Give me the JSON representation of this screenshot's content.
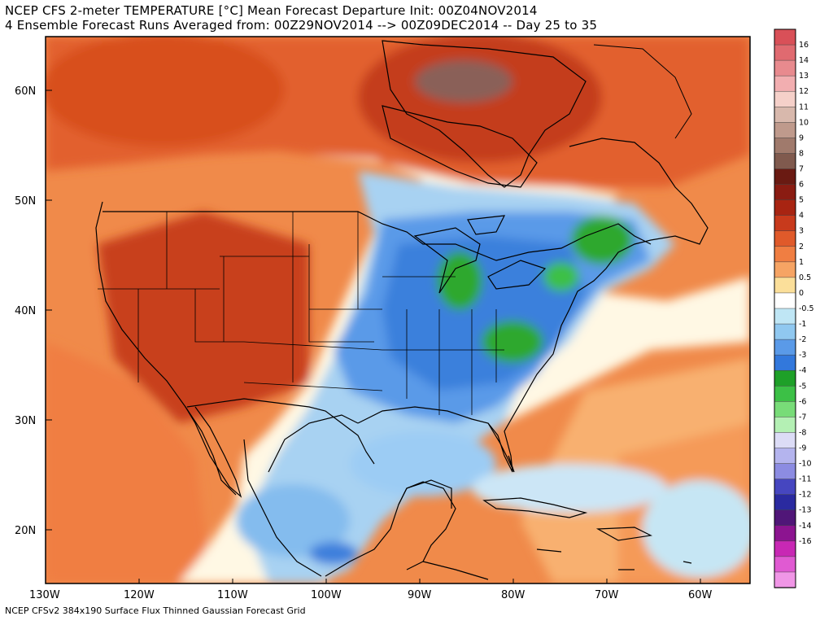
{
  "title": {
    "line1": "NCEP CFS 2-meter TEMPERATURE [°C] Mean Forecast Departure Init: 00Z04NOV2014",
    "line2": "4 Ensemble Forecast Runs Averaged from: 00Z29NOV2014 --> 00Z09DEC2014 -- Day 25 to 35"
  },
  "footer": "NCEP CFSv2 384x190 Surface Flux Thinned Gaussian Forecast Grid",
  "map": {
    "lat_ticks": [
      "60N",
      "50N",
      "40N",
      "30N",
      "20N"
    ],
    "lon_ticks": [
      "130W",
      "120W",
      "110W",
      "100W",
      "90W",
      "80W",
      "70W",
      "60W"
    ],
    "lat_range": [
      15,
      65
    ],
    "lon_range": [
      -130,
      -55
    ]
  },
  "colorbar": {
    "levels": [
      {
        "label": "16",
        "color": "#d95058"
      },
      {
        "label": "14",
        "color": "#e06a70"
      },
      {
        "label": "13",
        "color": "#e88a8e"
      },
      {
        "label": "12",
        "color": "#f2aeb0"
      },
      {
        "label": "11",
        "color": "#f5d0c9"
      },
      {
        "label": "10",
        "color": "#d8b8ac"
      },
      {
        "label": "9",
        "color": "#bf9a8c"
      },
      {
        "label": "8",
        "color": "#a07a6c"
      },
      {
        "label": "7",
        "color": "#805a4e"
      },
      {
        "label": "6",
        "color": "#6a1a12"
      },
      {
        "label": "5",
        "color": "#8a1c12"
      },
      {
        "label": "4",
        "color": "#a82412"
      },
      {
        "label": "3",
        "color": "#c83a1c"
      },
      {
        "label": "2",
        "color": "#e05a2a"
      },
      {
        "label": "1",
        "color": "#f07e42"
      },
      {
        "label": "0.5",
        "color": "#f6a464"
      },
      {
        "label": "0",
        "color": "#fbdf9a"
      },
      {
        "label": "-0.5",
        "color": "#ffffff"
      },
      {
        "label": "-1",
        "color": "#bfe6f5"
      },
      {
        "label": "-2",
        "color": "#90c8f0"
      },
      {
        "label": "-3",
        "color": "#5a9ae8"
      },
      {
        "label": "-4",
        "color": "#3278dc"
      },
      {
        "label": "-5",
        "color": "#1ea028"
      },
      {
        "label": "-6",
        "color": "#3cc046"
      },
      {
        "label": "-7",
        "color": "#78dc78"
      },
      {
        "label": "-8",
        "color": "#b4f0b4"
      },
      {
        "label": "-9",
        "color": "#dcdcf6"
      },
      {
        "label": "-10",
        "color": "#b4b4ee"
      },
      {
        "label": "-11",
        "color": "#8c8ce2"
      },
      {
        "label": "-12",
        "color": "#4646c0"
      },
      {
        "label": "-13",
        "color": "#2a2aa0"
      },
      {
        "label": "-14",
        "color": "#501678"
      },
      {
        "label": "-16",
        "color": "#8c1490"
      },
      {
        "label": "",
        "color": "#c828b4"
      },
      {
        "label": "",
        "color": "#e05ad2"
      },
      {
        "label": "",
        "color": "#f096e6"
      }
    ]
  },
  "colors": {
    "warm_strong": "#d84a22",
    "warm": "#f07a40",
    "warm_light": "#f8a868",
    "neutral": "#fbe3a0",
    "cold_light": "#b8def4",
    "cold": "#84bcee",
    "cold_strong": "#3c7fdc",
    "very_cold": "#2ea82e",
    "hot_core": "#8a6058",
    "ocean_deep": "#a0dcf0"
  }
}
